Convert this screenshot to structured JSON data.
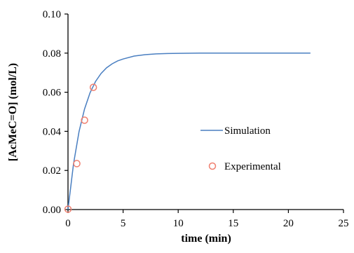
{
  "chart_data": {
    "type": "line",
    "title": "",
    "xlabel": "time (min)",
    "ylabel": "[AcMeC=O] (mol/L)",
    "xlim": [
      0,
      25
    ],
    "ylim": [
      0,
      0.1
    ],
    "x_ticks": [
      "0",
      "5",
      "10",
      "15",
      "20",
      "25"
    ],
    "y_ticks": [
      "0.00",
      "0.02",
      "0.04",
      "0.06",
      "0.08",
      "0.10"
    ],
    "grid": false,
    "legend_position": "center-right",
    "series": [
      {
        "name": "Simulation",
        "kind": "line",
        "color": "#4a7fc1",
        "x": [
          0,
          0.5,
          1,
          1.5,
          2,
          2.5,
          3,
          3.5,
          4,
          4.5,
          5,
          6,
          7,
          8,
          9,
          10,
          12,
          14,
          16,
          18,
          20,
          22
        ],
        "y": [
          0,
          0.0233,
          0.0398,
          0.0514,
          0.0597,
          0.0655,
          0.0696,
          0.0725,
          0.0745,
          0.076,
          0.077,
          0.0785,
          0.0792,
          0.0796,
          0.0798,
          0.0799,
          0.08,
          0.08,
          0.08,
          0.08,
          0.08,
          0.08
        ]
      },
      {
        "name": "Experimental",
        "kind": "scatter",
        "marker": "open-circle",
        "color": "#f07f6f",
        "x": [
          0,
          0.8,
          1.5,
          2.3
        ],
        "y": [
          0.0002,
          0.0235,
          0.0457,
          0.0625
        ]
      }
    ]
  }
}
